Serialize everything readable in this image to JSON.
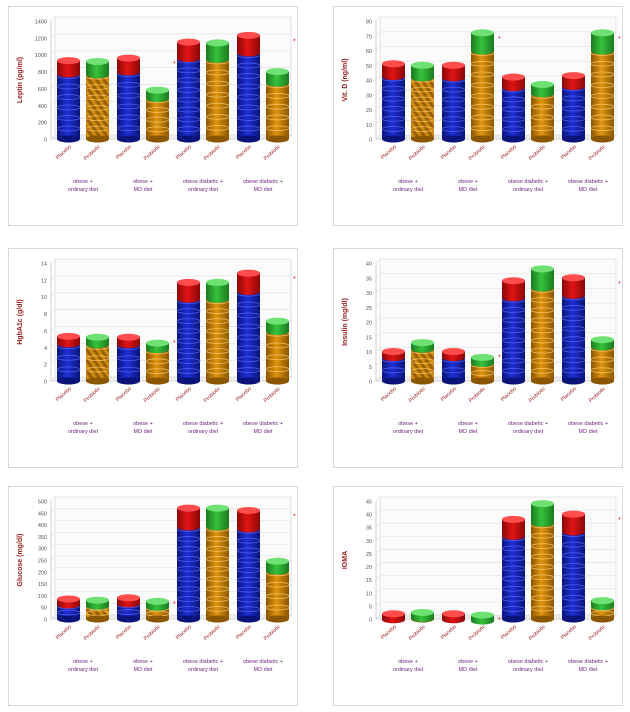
{
  "colors": {
    "blue": "#1f2fd6",
    "blue_dark": "#0a1478",
    "orange": "#e0950e",
    "orange_dark": "#8a5600",
    "red": "#e21414",
    "green": "#36c23c",
    "label": "#9b1c1c",
    "group_label": "#6b1e7a",
    "axis_text": "#555555"
  },
  "chart_data": [
    {
      "type": "bar",
      "ylabel": "Leptin (pg/ml)",
      "yticks": [
        "0",
        "200",
        "400",
        "600",
        "800",
        "1000",
        "1200",
        "1400"
      ],
      "ylim": [
        0,
        1400
      ],
      "bar_labels": [
        "Placebo",
        "Probiotic"
      ],
      "categories": [
        "obese + ordinary diet",
        "obese + MD diet",
        "obese diabetic + ordinary diet",
        "obese diabetic + MD diet"
      ],
      "series": [
        {
          "name": "Placebo",
          "values": [
            930,
            960,
            1150,
            1230
          ]
        },
        {
          "name": "Probiotic",
          "values": [
            920,
            580,
            1140,
            800
          ]
        }
      ],
      "star": [
        false,
        true,
        false,
        true
      ]
    },
    {
      "type": "bar",
      "ylabel": "Vit. D (ng/ml)",
      "yticks": [
        "0",
        "10",
        "20",
        "30",
        "40",
        "50",
        "60",
        "70",
        "80"
      ],
      "ylim": [
        0,
        80
      ],
      "bar_labels": [
        "Placebo",
        "Probiotic"
      ],
      "categories": [
        "obese + ordinary diet",
        "obese + MD diet",
        "obese diabetic + ordinary diet",
        "obese diabetic + MD diet"
      ],
      "series": [
        {
          "name": "Placebo",
          "values": [
            51,
            50,
            42,
            43
          ]
        },
        {
          "name": "Probiotic",
          "values": [
            50,
            72,
            37,
            72
          ]
        }
      ],
      "star": [
        false,
        true,
        false,
        true
      ]
    },
    {
      "type": "bar",
      "ylabel": "HgbA1c (g/dl)",
      "yticks": [
        "0",
        "2",
        "4",
        "6",
        "8",
        "10",
        "12",
        "14"
      ],
      "ylim": [
        0,
        14
      ],
      "bar_labels": [
        "Placebo",
        "Probiotic"
      ],
      "categories": [
        "obese + ordinary diet",
        "obese + MD diet",
        "obese diabetic + ordinary diet",
        "obese diabetic + MD diet"
      ],
      "series": [
        {
          "name": "Placebo",
          "values": [
            5.3,
            5.2,
            11.7,
            12.8
          ]
        },
        {
          "name": "Probiotic",
          "values": [
            5.2,
            4.5,
            11.7,
            7.1
          ]
        }
      ],
      "star": [
        false,
        true,
        false,
        true
      ]
    },
    {
      "type": "bar",
      "ylabel": "Insulin (mg/dl)",
      "yticks": [
        "0",
        "5",
        "10",
        "15",
        "20",
        "25",
        "30",
        "35",
        "40"
      ],
      "ylim": [
        0,
        40
      ],
      "bar_labels": [
        "Placebo",
        "Probiotic"
      ],
      "categories": [
        "obese + ordinary diet",
        "obese + MD diet",
        "obese diabetic + ordinary diet",
        "obese diabetic + MD diet"
      ],
      "series": [
        {
          "name": "Placebo",
          "values": [
            10,
            10,
            34,
            35
          ]
        },
        {
          "name": "Probiotic",
          "values": [
            13,
            8,
            38,
            14
          ]
        }
      ],
      "star": [
        false,
        true,
        false,
        true
      ]
    },
    {
      "type": "bar",
      "ylabel": "Glucose (mg/dl)",
      "yticks": [
        "0",
        "50",
        "100",
        "150",
        "200",
        "250",
        "300",
        "350",
        "400",
        "450",
        "500"
      ],
      "ylim": [
        0,
        500
      ],
      "bar_labels": [
        "Placebo",
        "Probiotic"
      ],
      "categories": [
        "obese + ordinary diet",
        "obese + MD diet",
        "obese diabetic + ordinary diet",
        "obese diabetic + MD diet"
      ],
      "series": [
        {
          "name": "Placebo",
          "values": [
            85,
            90,
            470,
            460
          ]
        },
        {
          "name": "Probiotic",
          "values": [
            80,
            75,
            470,
            245
          ]
        }
      ],
      "star": [
        false,
        true,
        false,
        true
      ]
    },
    {
      "type": "bar",
      "ylabel": "IOMA",
      "yticks": [
        "0",
        "5",
        "10",
        "15",
        "20",
        "25",
        "30",
        "35",
        "40",
        "45"
      ],
      "ylim": [
        0,
        45
      ],
      "bar_labels": [
        "Placebo",
        "Probiotic"
      ],
      "categories": [
        "obese + ordinary diet",
        "obese + MD diet",
        "obese diabetic + ordinary diet",
        "obese diabetic + MD diet"
      ],
      "series": [
        {
          "name": "Placebo",
          "values": [
            2,
            2,
            38,
            40
          ]
        },
        {
          "name": "Probiotic",
          "values": [
            2.5,
            1.5,
            44,
            7
          ]
        }
      ],
      "star": [
        false,
        true,
        false,
        true
      ]
    }
  ]
}
